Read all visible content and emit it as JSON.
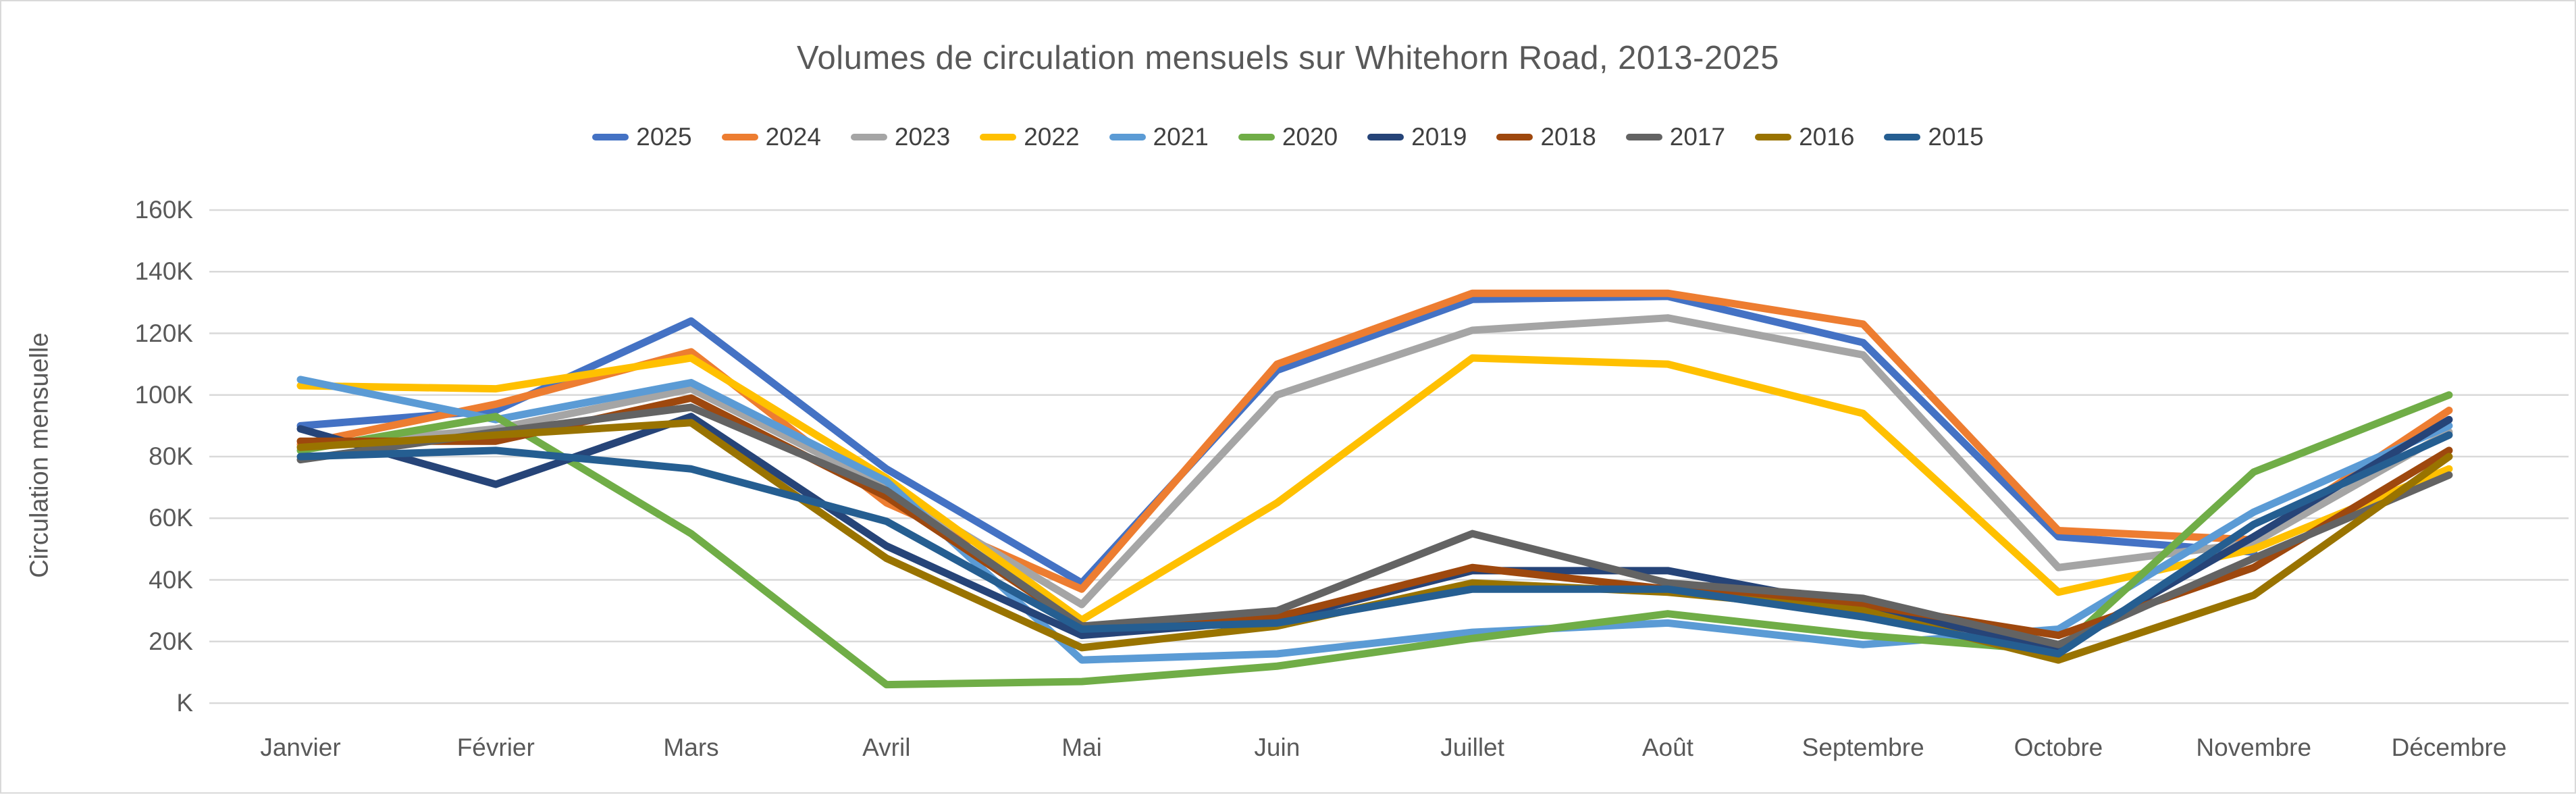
{
  "chart": {
    "title": "Volumes de circulation mensuels sur Whitehorn Road, 2013-2025",
    "y_axis_title": "Circulation mensuelle"
  },
  "chart_data": {
    "type": "line",
    "title": "Volumes de circulation mensuels sur Whitehorn Road, 2013-2025",
    "xlabel": "",
    "ylabel": "Circulation mensuelle",
    "unit": "thousands (K)",
    "ylim": [
      0,
      160
    ],
    "grid": "horizontal",
    "legend_position": "top",
    "categories": [
      "Janvier",
      "Février",
      "Mars",
      "Avril",
      "Mai",
      "Juin",
      "Juillet",
      "Août",
      "Septembre",
      "Octobre",
      "Novembre",
      "Décembre"
    ],
    "ytick_labels": [
      "160K",
      "140K",
      "120K",
      "100K",
      "80K",
      "60K",
      "40K",
      "20K",
      "K"
    ],
    "ytick_values": [
      160,
      140,
      120,
      100,
      80,
      60,
      40,
      20,
      0
    ],
    "series": [
      {
        "name": "2025",
        "color": "#4472C4",
        "values": [
          90,
          95,
          124,
          76,
          39,
          108,
          131,
          132,
          117,
          54,
          49,
          null
        ]
      },
      {
        "name": "2024",
        "color": "#ED7D31",
        "values": [
          84,
          97,
          114,
          65,
          37,
          110,
          133,
          133,
          123,
          56,
          53,
          95
        ]
      },
      {
        "name": "2023",
        "color": "#A5A5A5",
        "values": [
          83,
          89,
          102,
          70,
          32,
          100,
          121,
          125,
          113,
          44,
          52,
          88
        ]
      },
      {
        "name": "2022",
        "color": "#FFC000",
        "values": [
          103,
          102,
          112,
          73,
          27,
          65,
          112,
          110,
          94,
          36,
          50,
          76
        ]
      },
      {
        "name": "2021",
        "color": "#5B9BD5",
        "values": [
          105,
          92,
          104,
          72,
          14,
          16,
          23,
          26,
          19,
          24,
          62,
          90
        ]
      },
      {
        "name": "2020",
        "color": "#70AD47",
        "values": [
          82,
          93,
          55,
          6,
          7,
          12,
          21,
          29,
          22,
          17,
          75,
          100
        ]
      },
      {
        "name": "2019",
        "color": "#264478",
        "values": [
          89,
          71,
          93,
          51,
          22,
          27,
          43,
          43,
          31,
          18,
          54,
          92
        ]
      },
      {
        "name": "2018",
        "color": "#9E480E",
        "values": [
          85,
          85,
          99,
          67,
          25,
          28,
          44,
          37,
          32,
          22,
          44,
          82
        ]
      },
      {
        "name": "2017",
        "color": "#636363",
        "values": [
          79,
          88,
          96,
          69,
          25,
          30,
          55,
          39,
          34,
          19,
          47,
          74
        ]
      },
      {
        "name": "2016",
        "color": "#997300",
        "values": [
          83,
          87,
          91,
          47,
          18,
          25,
          39,
          36,
          30,
          14,
          35,
          80
        ]
      },
      {
        "name": "2015",
        "color": "#255E91",
        "values": [
          80,
          82,
          76,
          59,
          24,
          26,
          37,
          37,
          28,
          16,
          58,
          87
        ]
      }
    ]
  }
}
